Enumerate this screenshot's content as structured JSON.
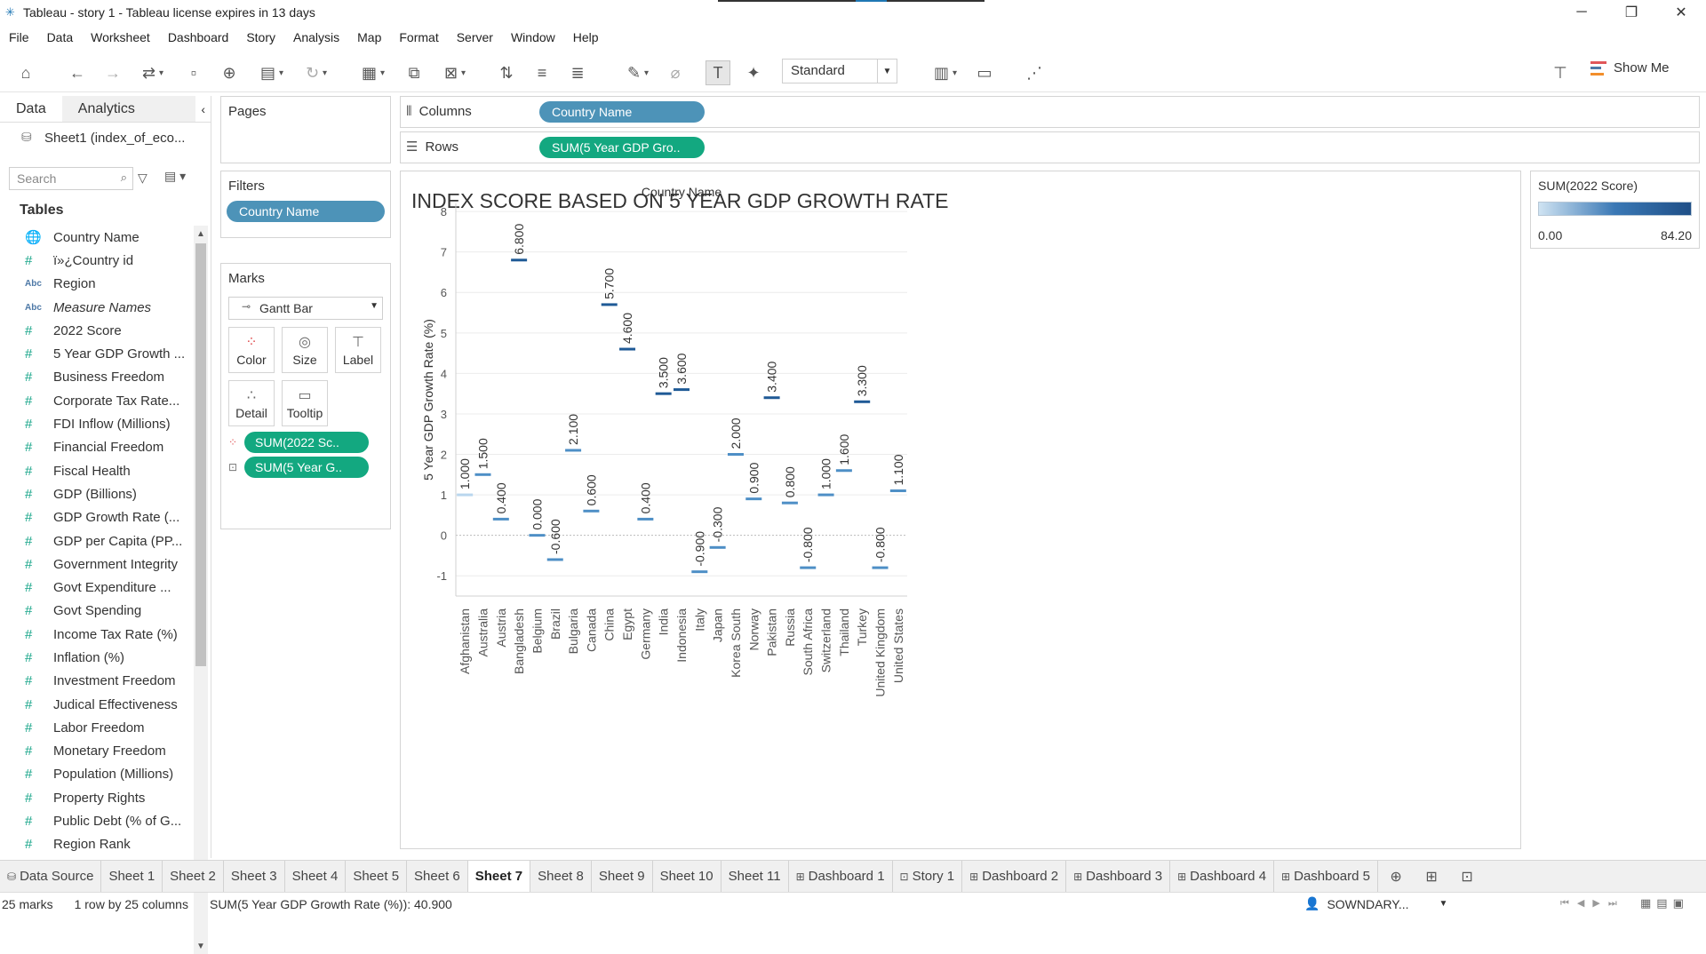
{
  "window": {
    "title": "Tableau - story 1 - Tableau license expires in 13 days",
    "minimize": "─",
    "restore": "❐",
    "close": "✕"
  },
  "menu": [
    "File",
    "Data",
    "Worksheet",
    "Dashboard",
    "Story",
    "Analysis",
    "Map",
    "Format",
    "Server",
    "Window",
    "Help"
  ],
  "toolbar": {
    "fit_mode": "Standard",
    "show_me": "Show Me"
  },
  "data_pane": {
    "tab_data": "Data",
    "tab_analytics": "Analytics",
    "collapse": "‹",
    "source": "Sheet1 (index_of_eco...",
    "search_placeholder": "Search",
    "tables_heading": "Tables",
    "fields": [
      {
        "type": "geo",
        "name": "Country Name"
      },
      {
        "type": "num",
        "name": "ï»¿Country id"
      },
      {
        "type": "abc",
        "name": "Region"
      },
      {
        "type": "abc",
        "name": "Measure Names",
        "italic": true
      },
      {
        "type": "num",
        "name": "2022 Score"
      },
      {
        "type": "num",
        "name": "5 Year GDP Growth ..."
      },
      {
        "type": "num",
        "name": "Business Freedom"
      },
      {
        "type": "num",
        "name": "Corporate Tax Rate..."
      },
      {
        "type": "num",
        "name": "FDI Inflow (Millions)"
      },
      {
        "type": "num",
        "name": "Financial Freedom"
      },
      {
        "type": "num",
        "name": "Fiscal Health"
      },
      {
        "type": "num",
        "name": "GDP (Billions)"
      },
      {
        "type": "num",
        "name": "GDP Growth Rate (..."
      },
      {
        "type": "num",
        "name": "GDP per Capita (PP..."
      },
      {
        "type": "num",
        "name": "Government Integrity"
      },
      {
        "type": "num",
        "name": "Govt Expenditure ..."
      },
      {
        "type": "num",
        "name": "Govt Spending"
      },
      {
        "type": "num",
        "name": "Income Tax Rate (%)"
      },
      {
        "type": "num",
        "name": "Inflation (%)"
      },
      {
        "type": "num",
        "name": "Investment Freedom"
      },
      {
        "type": "num",
        "name": "Judical Effectiveness"
      },
      {
        "type": "num",
        "name": "Labor Freedom"
      },
      {
        "type": "num",
        "name": "Monetary Freedom"
      },
      {
        "type": "num",
        "name": "Population (Millions)"
      },
      {
        "type": "num",
        "name": "Property Rights"
      },
      {
        "type": "num",
        "name": "Public Debt (% of G..."
      },
      {
        "type": "num",
        "name": "Region Rank"
      }
    ]
  },
  "cards": {
    "pages": "Pages",
    "filters": "Filters",
    "filter_pill": "Country Name",
    "marks": "Marks",
    "mark_type": "Gantt Bar",
    "mark_buttons": {
      "color": "Color",
      "size": "Size",
      "label": "Label",
      "detail": "Detail",
      "tooltip": "Tooltip"
    },
    "mark_pill_color": "SUM(2022 Sc..",
    "mark_pill_label": "SUM(5 Year G.."
  },
  "shelves": {
    "columns_label": "Columns",
    "columns_pill": "Country Name",
    "rows_label": "Rows",
    "rows_pill": "SUM(5 Year GDP Gro.."
  },
  "view": {
    "title": "INDEX SCORE BASED ON 5 YEAR GDP GROWTH RATE"
  },
  "chart_data": {
    "type": "gantt",
    "title": "INDEX SCORE BASED ON 5 YEAR GDP GROWTH RATE",
    "xlabel": "Country Name",
    "ylabel": "5 Year GDP Growth Rate (%)",
    "ylim": [
      -1.5,
      8.2
    ],
    "yticks": [
      -1,
      0,
      1,
      2,
      3,
      4,
      5,
      6,
      7,
      8
    ],
    "categories": [
      "Afghanistan",
      "Australia",
      "Austria",
      "Bangladesh",
      "Belgium",
      "Brazil",
      "Bulgaria",
      "Canada",
      "China",
      "Egypt",
      "Germany",
      "India",
      "Indonesia",
      "Italy",
      "Japan",
      "Korea South",
      "Norway",
      "Pakistan",
      "Russia",
      "South Africa",
      "Switzerland",
      "Thailand",
      "Turkey",
      "United Kingdom",
      "United States"
    ],
    "values": [
      1.0,
      1.5,
      0.4,
      6.8,
      0.0,
      -0.6,
      2.1,
      0.6,
      5.7,
      4.6,
      0.4,
      3.5,
      3.6,
      -0.9,
      -0.3,
      2.0,
      0.9,
      3.4,
      0.8,
      -0.8,
      1.0,
      1.6,
      3.3,
      -0.8,
      1.1
    ],
    "labels": [
      "1.000",
      "1.500",
      "0.400",
      "6.800",
      "0.000",
      "-0.600",
      "2.100",
      "0.600",
      "5.700",
      "4.600",
      "0.400",
      "3.500",
      "3.600",
      "-0.900",
      "-0.300",
      "2.000",
      "0.900",
      "3.400",
      "0.800",
      "-0.800",
      "1.000",
      "1.600",
      "3.300",
      "-0.800",
      "1.100"
    ],
    "color_legend": {
      "title": "SUM(2022 Score)",
      "min": "0.00",
      "max": "84.20"
    },
    "colors": {
      "light": "#b9d6ee",
      "mid": "#4e8fc6",
      "dark": "#1f5a96"
    }
  },
  "sheet_tabs": [
    {
      "label": "Data Source",
      "icon": "db"
    },
    {
      "label": "Sheet 1"
    },
    {
      "label": "Sheet 2"
    },
    {
      "label": "Sheet 3"
    },
    {
      "label": "Sheet 4"
    },
    {
      "label": "Sheet 5"
    },
    {
      "label": "Sheet 6"
    },
    {
      "label": "Sheet 7",
      "active": true
    },
    {
      "label": "Sheet 8"
    },
    {
      "label": "Sheet 9"
    },
    {
      "label": "Sheet 10"
    },
    {
      "label": "Sheet 11"
    },
    {
      "label": "Dashboard 1",
      "icon": "dash"
    },
    {
      "label": "Story 1",
      "icon": "story"
    },
    {
      "label": "Dashboard 2",
      "icon": "dash"
    },
    {
      "label": "Dashboard 3",
      "icon": "dash"
    },
    {
      "label": "Dashboard 4",
      "icon": "dash"
    },
    {
      "label": "Dashboard 5",
      "icon": "dash"
    }
  ],
  "status": {
    "marks": "25 marks",
    "layout": "1 row by 25 columns",
    "sum": "SUM(5 Year GDP Growth Rate (%)): 40.900",
    "user": "SOWNDARY..."
  }
}
